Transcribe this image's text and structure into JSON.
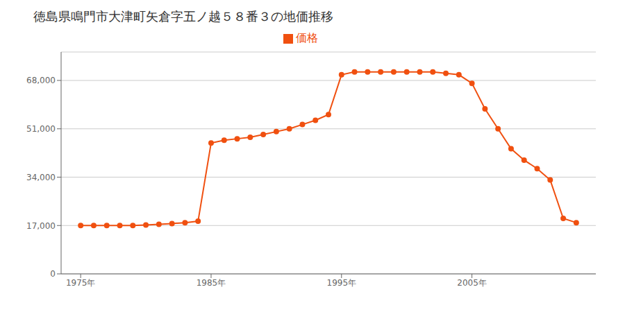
{
  "chart_data": {
    "type": "line",
    "title": "徳島県鳴門市大津町矢倉字五ノ越５８番３の地価推移",
    "x": [
      1975,
      1976,
      1977,
      1978,
      1979,
      1980,
      1981,
      1982,
      1983,
      1984,
      1985,
      1986,
      1987,
      1988,
      1989,
      1990,
      1991,
      1992,
      1993,
      1994,
      1995,
      1996,
      1997,
      1998,
      1999,
      2000,
      2001,
      2002,
      2003,
      2004,
      2005,
      2006,
      2007,
      2008,
      2009,
      2010,
      2011,
      2012,
      2013
    ],
    "series": [
      {
        "name": "価格",
        "color": "#f05010",
        "marker": "circle",
        "values": [
          17000,
          17000,
          17000,
          17000,
          17000,
          17200,
          17400,
          17700,
          18000,
          18500,
          46000,
          47000,
          47500,
          48000,
          49000,
          50000,
          51000,
          52500,
          54000,
          56000,
          70000,
          71000,
          71000,
          71000,
          71000,
          71000,
          71000,
          71000,
          70500,
          70000,
          67000,
          58000,
          51000,
          44000,
          40000,
          37000,
          33000,
          19500,
          18000
        ]
      }
    ],
    "xlim": [
      1973.5,
      2014.5
    ],
    "xticks": [
      {
        "value": 1975,
        "label": "1975年"
      },
      {
        "value": 1985,
        "label": "1985年"
      },
      {
        "value": 1995,
        "label": "1995年"
      },
      {
        "value": 2005,
        "label": "2005年"
      }
    ],
    "ylim": [
      0,
      78000
    ],
    "yticks": [
      0,
      {
        "value": 17000,
        "label": "17,000"
      },
      {
        "value": 34000,
        "label": "34,000"
      },
      {
        "value": 51000,
        "label": "51,000"
      },
      {
        "value": 68000,
        "label": "68,000"
      }
    ],
    "grid": true,
    "legend": "top"
  }
}
